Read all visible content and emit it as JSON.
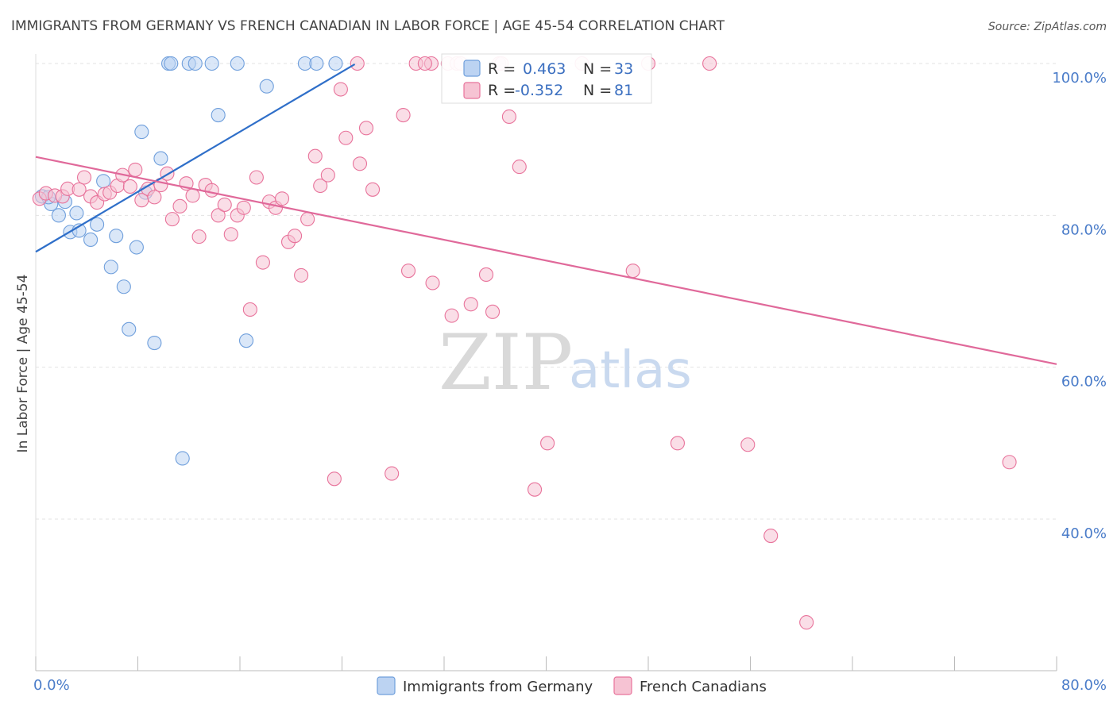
{
  "chart_data": {
    "type": "scatter",
    "title": "IMMIGRANTS FROM GERMANY VS FRENCH CANADIAN IN LABOR FORCE | AGE 45-54 CORRELATION CHART",
    "source": "Source: ZipAtlas.com",
    "ylabel": "In Labor Force | Age 45-54",
    "xlabel": "",
    "xlim": [
      0,
      80
    ],
    "ylim": [
      20,
      102
    ],
    "x_tick_labels": [
      "0.0%",
      "80.0%"
    ],
    "y_ticks": [
      {
        "value": 100,
        "label": "100.0%"
      },
      {
        "value": 80,
        "label": "80.0%"
      },
      {
        "value": 60,
        "label": "60.0%"
      },
      {
        "value": 40,
        "label": "40.0%"
      }
    ],
    "grid": true,
    "legend_placement": "top-center",
    "watermark": {
      "zip": "ZIP",
      "atlas": "atlas"
    },
    "series": [
      {
        "name": "Immigrants from Germany",
        "color": "#6f9fdc",
        "fill": "#bcd3f2",
        "stats": {
          "r_label": "R =",
          "r_value": "0.463",
          "n_label": "N =",
          "n_value": "33"
        },
        "trend": {
          "x": [
            0,
            25
          ],
          "y": [
            75.2,
            99.9
          ]
        },
        "points": [
          [
            0.5,
            82.5
          ],
          [
            1.2,
            81.5
          ],
          [
            1.8,
            80.0
          ],
          [
            2.3,
            81.8
          ],
          [
            2.7,
            77.8
          ],
          [
            3.2,
            80.3
          ],
          [
            3.4,
            78.0
          ],
          [
            4.3,
            76.8
          ],
          [
            4.8,
            78.8
          ],
          [
            5.3,
            84.5
          ],
          [
            5.9,
            73.2
          ],
          [
            6.3,
            77.3
          ],
          [
            6.9,
            70.6
          ],
          [
            7.3,
            65.0
          ],
          [
            7.9,
            75.8
          ],
          [
            8.3,
            91.0
          ],
          [
            8.6,
            83.0
          ],
          [
            9.3,
            63.2
          ],
          [
            9.8,
            87.5
          ],
          [
            10.4,
            100.0
          ],
          [
            10.6,
            100.0
          ],
          [
            11.5,
            48.0
          ],
          [
            12.0,
            100.0
          ],
          [
            12.5,
            100.0
          ],
          [
            13.8,
            100.0
          ],
          [
            14.3,
            93.2
          ],
          [
            15.8,
            100.0
          ],
          [
            16.5,
            63.5
          ],
          [
            18.1,
            97.0
          ],
          [
            21.1,
            100.0
          ],
          [
            22.0,
            100.0
          ],
          [
            23.5,
            100.0
          ],
          [
            1.0,
            82.4
          ]
        ]
      },
      {
        "name": "French Canadians",
        "color": "#e8739b",
        "fill": "#f6c3d3",
        "stats": {
          "r_label": "R =",
          "r_value": "-0.352",
          "n_label": "N =",
          "n_value": "81"
        },
        "trend": {
          "x": [
            0,
            80
          ],
          "y": [
            87.7,
            60.4
          ]
        },
        "points": [
          [
            0.3,
            82.2
          ],
          [
            0.8,
            82.9
          ],
          [
            1.5,
            82.6
          ],
          [
            2.1,
            82.5
          ],
          [
            2.5,
            83.5
          ],
          [
            3.4,
            83.4
          ],
          [
            3.8,
            85.0
          ],
          [
            4.3,
            82.5
          ],
          [
            4.8,
            81.7
          ],
          [
            5.4,
            82.8
          ],
          [
            5.8,
            83.0
          ],
          [
            6.4,
            83.9
          ],
          [
            6.8,
            85.3
          ],
          [
            7.4,
            83.8
          ],
          [
            7.8,
            86.0
          ],
          [
            8.3,
            82.0
          ],
          [
            8.8,
            83.5
          ],
          [
            9.3,
            82.4
          ],
          [
            9.8,
            84.0
          ],
          [
            10.3,
            85.5
          ],
          [
            10.7,
            79.5
          ],
          [
            11.3,
            81.2
          ],
          [
            11.8,
            84.2
          ],
          [
            12.3,
            82.6
          ],
          [
            12.8,
            77.2
          ],
          [
            13.3,
            84.0
          ],
          [
            13.8,
            83.3
          ],
          [
            14.3,
            80.0
          ],
          [
            14.8,
            81.4
          ],
          [
            15.3,
            77.5
          ],
          [
            15.8,
            80.0
          ],
          [
            16.3,
            81.0
          ],
          [
            16.8,
            67.6
          ],
          [
            17.3,
            85.0
          ],
          [
            17.8,
            73.8
          ],
          [
            18.3,
            81.8
          ],
          [
            18.8,
            81.0
          ],
          [
            19.3,
            82.2
          ],
          [
            19.8,
            76.5
          ],
          [
            20.3,
            77.3
          ],
          [
            20.8,
            72.1
          ],
          [
            21.3,
            79.5
          ],
          [
            21.9,
            87.8
          ],
          [
            22.3,
            83.9
          ],
          [
            22.9,
            85.3
          ],
          [
            23.4,
            45.3
          ],
          [
            23.9,
            96.6
          ],
          [
            24.3,
            90.2
          ],
          [
            25.2,
            100.0
          ],
          [
            25.4,
            86.8
          ],
          [
            25.9,
            91.5
          ],
          [
            26.4,
            83.4
          ],
          [
            27.9,
            46.0
          ],
          [
            28.8,
            93.2
          ],
          [
            29.2,
            72.7
          ],
          [
            29.8,
            100.0
          ],
          [
            31.0,
            100.0
          ],
          [
            31.1,
            71.1
          ],
          [
            32.3,
            100.0
          ],
          [
            32.6,
            66.8
          ],
          [
            33.0,
            100.0
          ],
          [
            34.1,
            68.3
          ],
          [
            35.3,
            72.2
          ],
          [
            35.8,
            67.3
          ],
          [
            36.3,
            100.0
          ],
          [
            37.1,
            93.0
          ],
          [
            37.9,
            86.4
          ],
          [
            39.1,
            43.9
          ],
          [
            40.1,
            50.0
          ],
          [
            42.8,
            100.0
          ],
          [
            46.8,
            72.7
          ],
          [
            48.0,
            100.0
          ],
          [
            50.3,
            50.0
          ],
          [
            52.8,
            100.0
          ],
          [
            55.8,
            49.8
          ],
          [
            57.6,
            37.8
          ],
          [
            60.4,
            26.4
          ],
          [
            76.3,
            47.5
          ],
          [
            36.5,
            100.0
          ],
          [
            33.3,
            100.0
          ],
          [
            30.5,
            100.0
          ]
        ]
      }
    ]
  }
}
